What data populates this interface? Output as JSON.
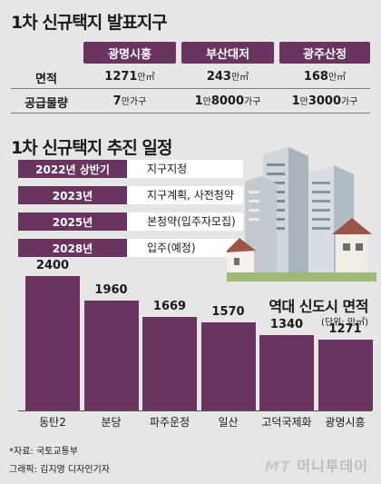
{
  "section1": {
    "title": "1차 신규택지 발표지구",
    "columns": [
      "광명시흥",
      "부산대저",
      "광주산정"
    ],
    "rows": [
      {
        "label": "면적",
        "values": [
          {
            "num": "1271",
            "unit": "만㎡"
          },
          {
            "num": "243",
            "unit": "만㎡"
          },
          {
            "num": "168",
            "unit": "만㎡"
          }
        ]
      },
      {
        "label": "공급물량",
        "values": [
          {
            "pre": "",
            "num": "7",
            "unit": "만가구"
          },
          {
            "pre": "1",
            "num": "8000",
            "unit": "가구",
            "mid": "만"
          },
          {
            "pre": "1",
            "num": "3000",
            "unit": "가구",
            "mid": "만"
          }
        ]
      }
    ]
  },
  "section2": {
    "title": "1차 신규택지 추진 일정",
    "schedule": [
      {
        "year": "2022년 상반기",
        "desc": "지구지정"
      },
      {
        "year": "2023년",
        "desc": "지구계획, 사전청약"
      },
      {
        "year": "2025년",
        "desc": "본청약(입주자모집)"
      },
      {
        "year": "2028년",
        "desc": "입주(예정)"
      }
    ]
  },
  "chart_data": {
    "type": "bar",
    "title": "역대 신도시 면적",
    "unit_label": "(단위: 만㎡)",
    "categories": [
      "동탄2",
      "분당",
      "파주운정",
      "일산",
      "고덕국제화",
      "광명시흥"
    ],
    "values": [
      2400,
      1960,
      1669,
      1570,
      1340,
      1271
    ],
    "value_labels": [
      "2400",
      "1960",
      "1669",
      "1570",
      "1340",
      "1271"
    ],
    "ylim": [
      0,
      2400
    ],
    "bar_color": "#6b3360"
  },
  "footer": {
    "source": "*자료: 국토교통부",
    "credit": "그래픽: 김지영 디자인기자",
    "brand_mt": "MT",
    "brand_name": "머니투데이"
  },
  "colors": {
    "accent": "#6b3360",
    "background": "#e6e6e6"
  }
}
